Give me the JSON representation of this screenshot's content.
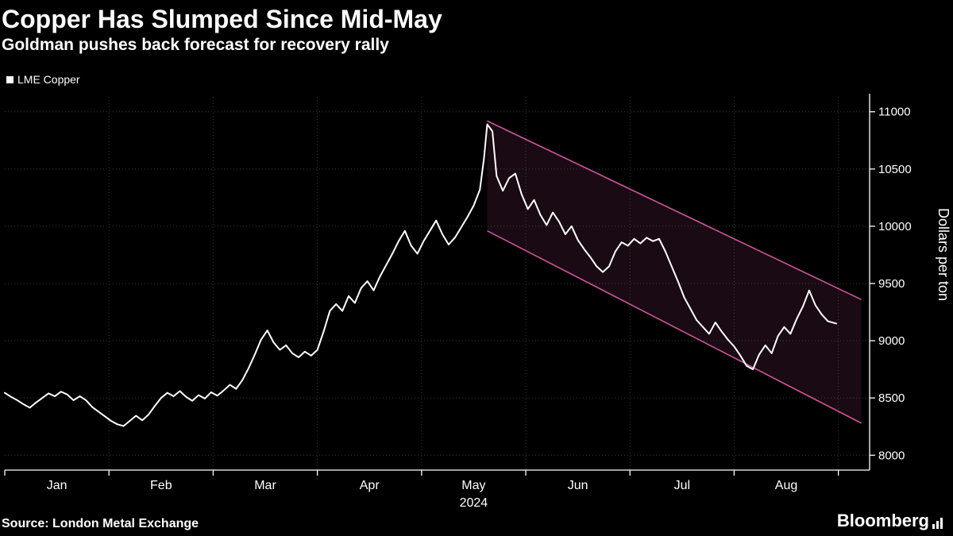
{
  "header": {
    "title": "Copper Has Slumped Since Mid-May",
    "subtitle": "Goldman pushes back forecast for recovery rally"
  },
  "legend": {
    "items": [
      {
        "label": "LME Copper",
        "marker_color": "#ffffff"
      }
    ]
  },
  "footer": {
    "source": "Source: London Metal Exchange",
    "brand": "Bloomberg"
  },
  "chart_data": {
    "type": "line",
    "title": "Copper Has Slumped Since Mid-May",
    "subtitle": "Goldman pushes back forecast for recovery rally",
    "ylabel": "Dollars per ton",
    "xlabel": "2024",
    "x_unit": "months since 2024-01-01 (fractional)",
    "x_tick_labels": [
      "Jan",
      "Feb",
      "Mar",
      "Apr",
      "May",
      "Jun",
      "Jul",
      "Aug"
    ],
    "yticks": [
      8000,
      8500,
      9000,
      9500,
      10000,
      10500,
      11000
    ],
    "ylim": [
      7870,
      11130
    ],
    "xlim": [
      0,
      8.3
    ],
    "grid": true,
    "legend_position": "top-left",
    "colors": {
      "background": "#000000",
      "grid": "#3a3a3a",
      "axis": "#ffffff",
      "text": "#ffffff",
      "line": "#ffffff",
      "channel_stroke": "#d0549b",
      "channel_fill": "#d0549b",
      "channel_fill_opacity": 0.12
    },
    "series": [
      {
        "name": "LME Copper",
        "color": "#ffffff",
        "points": [
          [
            0.0,
            8545
          ],
          [
            0.06,
            8510
          ],
          [
            0.12,
            8480
          ],
          [
            0.18,
            8445
          ],
          [
            0.24,
            8415
          ],
          [
            0.3,
            8460
          ],
          [
            0.36,
            8500
          ],
          [
            0.42,
            8540
          ],
          [
            0.48,
            8515
          ],
          [
            0.54,
            8555
          ],
          [
            0.6,
            8530
          ],
          [
            0.66,
            8480
          ],
          [
            0.72,
            8515
          ],
          [
            0.78,
            8480
          ],
          [
            0.84,
            8420
          ],
          [
            0.9,
            8380
          ],
          [
            0.96,
            8340
          ],
          [
            1.02,
            8300
          ],
          [
            1.08,
            8270
          ],
          [
            1.14,
            8255
          ],
          [
            1.2,
            8300
          ],
          [
            1.26,
            8345
          ],
          [
            1.32,
            8305
          ],
          [
            1.38,
            8355
          ],
          [
            1.44,
            8430
          ],
          [
            1.5,
            8500
          ],
          [
            1.56,
            8545
          ],
          [
            1.62,
            8515
          ],
          [
            1.68,
            8560
          ],
          [
            1.74,
            8510
          ],
          [
            1.8,
            8475
          ],
          [
            1.86,
            8525
          ],
          [
            1.92,
            8495
          ],
          [
            1.98,
            8550
          ],
          [
            2.04,
            8520
          ],
          [
            2.1,
            8565
          ],
          [
            2.16,
            8615
          ],
          [
            2.22,
            8580
          ],
          [
            2.28,
            8655
          ],
          [
            2.34,
            8760
          ],
          [
            2.4,
            8880
          ],
          [
            2.46,
            9010
          ],
          [
            2.52,
            9090
          ],
          [
            2.58,
            8985
          ],
          [
            2.64,
            8920
          ],
          [
            2.7,
            8960
          ],
          [
            2.76,
            8890
          ],
          [
            2.82,
            8855
          ],
          [
            2.88,
            8905
          ],
          [
            2.94,
            8870
          ],
          [
            3.0,
            8920
          ],
          [
            3.06,
            9080
          ],
          [
            3.12,
            9260
          ],
          [
            3.18,
            9320
          ],
          [
            3.24,
            9260
          ],
          [
            3.3,
            9390
          ],
          [
            3.36,
            9330
          ],
          [
            3.42,
            9460
          ],
          [
            3.48,
            9520
          ],
          [
            3.54,
            9440
          ],
          [
            3.6,
            9560
          ],
          [
            3.66,
            9660
          ],
          [
            3.72,
            9760
          ],
          [
            3.78,
            9870
          ],
          [
            3.84,
            9960
          ],
          [
            3.9,
            9830
          ],
          [
            3.96,
            9760
          ],
          [
            4.02,
            9870
          ],
          [
            4.08,
            9960
          ],
          [
            4.14,
            10050
          ],
          [
            4.2,
            9930
          ],
          [
            4.26,
            9840
          ],
          [
            4.32,
            9900
          ],
          [
            4.38,
            9990
          ],
          [
            4.44,
            10080
          ],
          [
            4.5,
            10180
          ],
          [
            4.56,
            10320
          ],
          [
            4.6,
            10600
          ],
          [
            4.63,
            10890
          ],
          [
            4.68,
            10830
          ],
          [
            4.72,
            10440
          ],
          [
            4.78,
            10310
          ],
          [
            4.84,
            10420
          ],
          [
            4.9,
            10460
          ],
          [
            4.96,
            10280
          ],
          [
            5.02,
            10150
          ],
          [
            5.08,
            10230
          ],
          [
            5.14,
            10100
          ],
          [
            5.2,
            10010
          ],
          [
            5.26,
            10120
          ],
          [
            5.32,
            10040
          ],
          [
            5.38,
            9930
          ],
          [
            5.44,
            10000
          ],
          [
            5.5,
            9880
          ],
          [
            5.56,
            9800
          ],
          [
            5.62,
            9730
          ],
          [
            5.68,
            9650
          ],
          [
            5.74,
            9600
          ],
          [
            5.8,
            9650
          ],
          [
            5.86,
            9780
          ],
          [
            5.92,
            9860
          ],
          [
            5.98,
            9830
          ],
          [
            6.04,
            9890
          ],
          [
            6.1,
            9850
          ],
          [
            6.16,
            9900
          ],
          [
            6.22,
            9870
          ],
          [
            6.28,
            9890
          ],
          [
            6.34,
            9780
          ],
          [
            6.4,
            9650
          ],
          [
            6.46,
            9520
          ],
          [
            6.52,
            9380
          ],
          [
            6.58,
            9280
          ],
          [
            6.64,
            9180
          ],
          [
            6.7,
            9120
          ],
          [
            6.76,
            9060
          ],
          [
            6.82,
            9160
          ],
          [
            6.88,
            9080
          ],
          [
            6.94,
            9010
          ],
          [
            7.0,
            8950
          ],
          [
            7.06,
            8870
          ],
          [
            7.12,
            8780
          ],
          [
            7.18,
            8750
          ],
          [
            7.24,
            8880
          ],
          [
            7.3,
            8960
          ],
          [
            7.36,
            8890
          ],
          [
            7.42,
            9040
          ],
          [
            7.48,
            9120
          ],
          [
            7.54,
            9060
          ],
          [
            7.6,
            9190
          ],
          [
            7.66,
            9300
          ],
          [
            7.72,
            9440
          ],
          [
            7.78,
            9310
          ],
          [
            7.84,
            9230
          ],
          [
            7.9,
            9170
          ],
          [
            7.98,
            9150
          ]
        ]
      }
    ],
    "channel": {
      "name": "downtrend-channel",
      "upper": [
        [
          4.63,
          10920
        ],
        [
          8.22,
          9360
        ]
      ],
      "lower": [
        [
          4.63,
          9960
        ],
        [
          8.22,
          8280
        ]
      ]
    }
  }
}
